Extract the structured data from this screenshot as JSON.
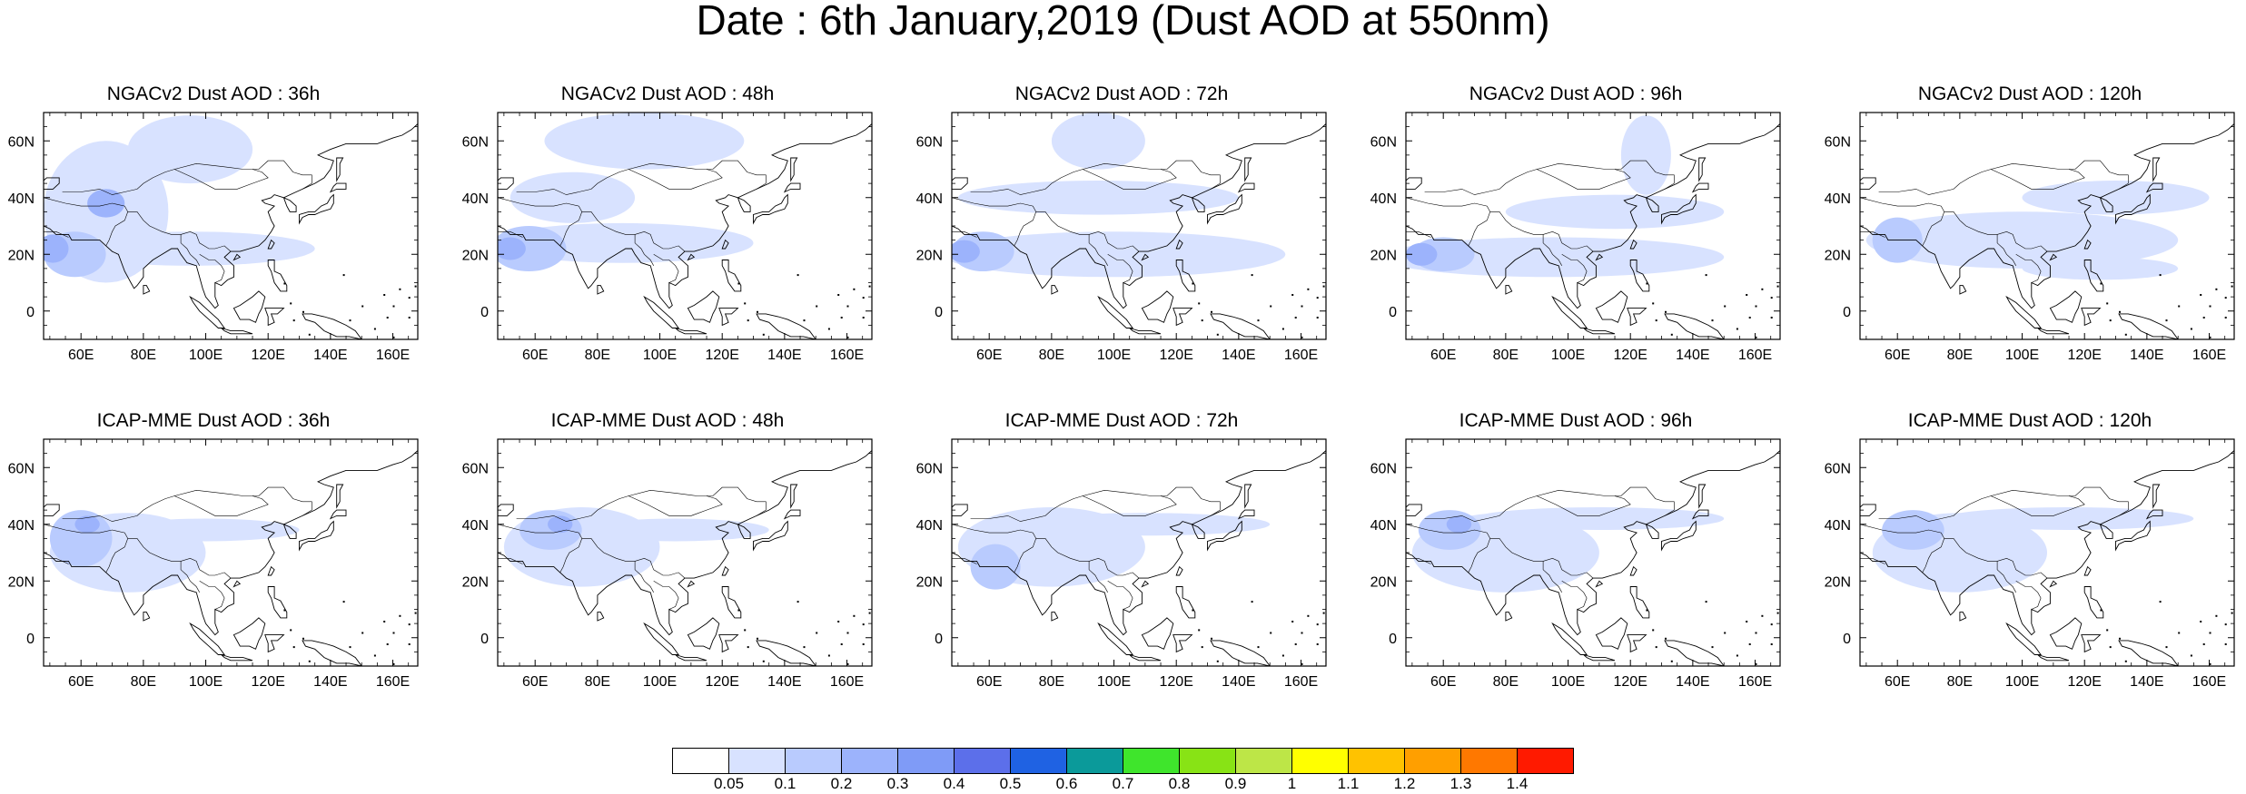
{
  "figure": {
    "title": "Date : 6th January,2019 (Dust AOD at 550nm)"
  },
  "map": {
    "lon_min": 48,
    "lon_max": 168,
    "lat_min": -10,
    "lat_max": 70,
    "lon_ticks": [
      60,
      80,
      100,
      120,
      140,
      160
    ],
    "lon_tick_labels": [
      "60E",
      "80E",
      "100E",
      "120E",
      "140E",
      "160E"
    ],
    "lat_ticks": [
      0,
      20,
      40,
      60
    ],
    "lat_tick_labels": [
      "0",
      "20N",
      "40N",
      "60N"
    ]
  },
  "panels": [
    {
      "title": "NGACv2 Dust AOD : 36h",
      "blobs": [
        {
          "lon": 95,
          "lat": 22,
          "rx": 40,
          "ry": 6,
          "level": 1
        },
        {
          "lon": 68,
          "lat": 35,
          "rx": 20,
          "ry": 25,
          "level": 1
        },
        {
          "lon": 95,
          "lat": 57,
          "rx": 20,
          "ry": 12,
          "level": 1
        },
        {
          "lon": 58,
          "lat": 20,
          "rx": 10,
          "ry": 8,
          "level": 2
        },
        {
          "lon": 68,
          "lat": 38,
          "rx": 6,
          "ry": 5,
          "level": 3
        },
        {
          "lon": 51,
          "lat": 22,
          "rx": 5,
          "ry": 5,
          "level": 3
        }
      ]
    },
    {
      "title": "NGACv2 Dust AOD : 48h",
      "blobs": [
        {
          "lon": 88,
          "lat": 24,
          "rx": 42,
          "ry": 7,
          "level": 1
        },
        {
          "lon": 95,
          "lat": 60,
          "rx": 32,
          "ry": 10,
          "level": 1
        },
        {
          "lon": 72,
          "lat": 40,
          "rx": 20,
          "ry": 9,
          "level": 1
        },
        {
          "lon": 58,
          "lat": 22,
          "rx": 12,
          "ry": 8,
          "level": 2
        },
        {
          "lon": 52,
          "lat": 22,
          "rx": 5,
          "ry": 4,
          "level": 3
        }
      ]
    },
    {
      "title": "NGACv2 Dust AOD : 72h",
      "blobs": [
        {
          "lon": 100,
          "lat": 20,
          "rx": 55,
          "ry": 8,
          "level": 1
        },
        {
          "lon": 95,
          "lat": 40,
          "rx": 45,
          "ry": 6,
          "level": 1
        },
        {
          "lon": 95,
          "lat": 60,
          "rx": 15,
          "ry": 10,
          "level": 1
        },
        {
          "lon": 58,
          "lat": 21,
          "rx": 10,
          "ry": 7,
          "level": 2
        },
        {
          "lon": 52,
          "lat": 21,
          "rx": 5,
          "ry": 4,
          "level": 3
        }
      ]
    },
    {
      "title": "NGACv2 Dust AOD : 96h",
      "blobs": [
        {
          "lon": 95,
          "lat": 19,
          "rx": 55,
          "ry": 7,
          "level": 1
        },
        {
          "lon": 115,
          "lat": 35,
          "rx": 35,
          "ry": 6,
          "level": 1
        },
        {
          "lon": 125,
          "lat": 55,
          "rx": 8,
          "ry": 14,
          "level": 1
        },
        {
          "lon": 60,
          "lat": 20,
          "rx": 10,
          "ry": 6,
          "level": 2
        },
        {
          "lon": 53,
          "lat": 20,
          "rx": 5,
          "ry": 4,
          "level": 3
        }
      ]
    },
    {
      "title": "NGACv2 Dust AOD : 120h",
      "blobs": [
        {
          "lon": 100,
          "lat": 25,
          "rx": 50,
          "ry": 10,
          "level": 1
        },
        {
          "lon": 130,
          "lat": 40,
          "rx": 30,
          "ry": 6,
          "level": 1
        },
        {
          "lon": 125,
          "lat": 15,
          "rx": 25,
          "ry": 4,
          "level": 1
        },
        {
          "lon": 60,
          "lat": 25,
          "rx": 8,
          "ry": 8,
          "level": 2
        }
      ]
    },
    {
      "title": "ICAP-MME Dust AOD : 36h",
      "blobs": [
        {
          "lon": 75,
          "lat": 30,
          "rx": 25,
          "ry": 14,
          "level": 1
        },
        {
          "lon": 100,
          "lat": 38,
          "rx": 30,
          "ry": 4,
          "level": 1
        },
        {
          "lon": 60,
          "lat": 35,
          "rx": 10,
          "ry": 10,
          "level": 2
        },
        {
          "lon": 62,
          "lat": 40,
          "rx": 4,
          "ry": 3,
          "level": 3
        }
      ]
    },
    {
      "title": "ICAP-MME Dust AOD : 48h",
      "blobs": [
        {
          "lon": 75,
          "lat": 32,
          "rx": 25,
          "ry": 14,
          "level": 1
        },
        {
          "lon": 105,
          "lat": 38,
          "rx": 30,
          "ry": 4,
          "level": 1
        },
        {
          "lon": 65,
          "lat": 38,
          "rx": 10,
          "ry": 7,
          "level": 2
        },
        {
          "lon": 68,
          "lat": 40,
          "rx": 4,
          "ry": 3,
          "level": 3
        }
      ]
    },
    {
      "title": "ICAP-MME Dust AOD : 72h",
      "blobs": [
        {
          "lon": 80,
          "lat": 32,
          "rx": 30,
          "ry": 14,
          "level": 1
        },
        {
          "lon": 110,
          "lat": 40,
          "rx": 40,
          "ry": 4,
          "level": 1
        },
        {
          "lon": 62,
          "lat": 25,
          "rx": 8,
          "ry": 8,
          "level": 2
        }
      ]
    },
    {
      "title": "ICAP-MME Dust AOD : 96h",
      "blobs": [
        {
          "lon": 80,
          "lat": 30,
          "rx": 30,
          "ry": 14,
          "level": 1
        },
        {
          "lon": 110,
          "lat": 42,
          "rx": 40,
          "ry": 4,
          "level": 1
        },
        {
          "lon": 62,
          "lat": 38,
          "rx": 10,
          "ry": 7,
          "level": 2
        },
        {
          "lon": 65,
          "lat": 40,
          "rx": 4,
          "ry": 3,
          "level": 3
        }
      ]
    },
    {
      "title": "ICAP-MME Dust AOD : 120h",
      "blobs": [
        {
          "lon": 80,
          "lat": 30,
          "rx": 28,
          "ry": 14,
          "level": 1
        },
        {
          "lon": 115,
          "lat": 42,
          "rx": 40,
          "ry": 4,
          "level": 1
        },
        {
          "lon": 65,
          "lat": 38,
          "rx": 10,
          "ry": 7,
          "level": 2
        }
      ]
    }
  ],
  "colorbar": {
    "colors": [
      "#ffffff",
      "#d8e2ff",
      "#b9cbfe",
      "#9cb3fc",
      "#7f9bf7",
      "#5c6fea",
      "#1f62e3",
      "#0b9a9a",
      "#3fe52c",
      "#88e315",
      "#bde647",
      "#ffff00",
      "#ffc200",
      "#ff9f00",
      "#ff7800",
      "#ff1a00"
    ],
    "labels": [
      "0.05",
      "0.1",
      "0.2",
      "0.3",
      "0.4",
      "0.5",
      "0.6",
      "0.7",
      "0.8",
      "0.9",
      "1",
      "1.1",
      "1.2",
      "1.3",
      "1.4"
    ]
  }
}
